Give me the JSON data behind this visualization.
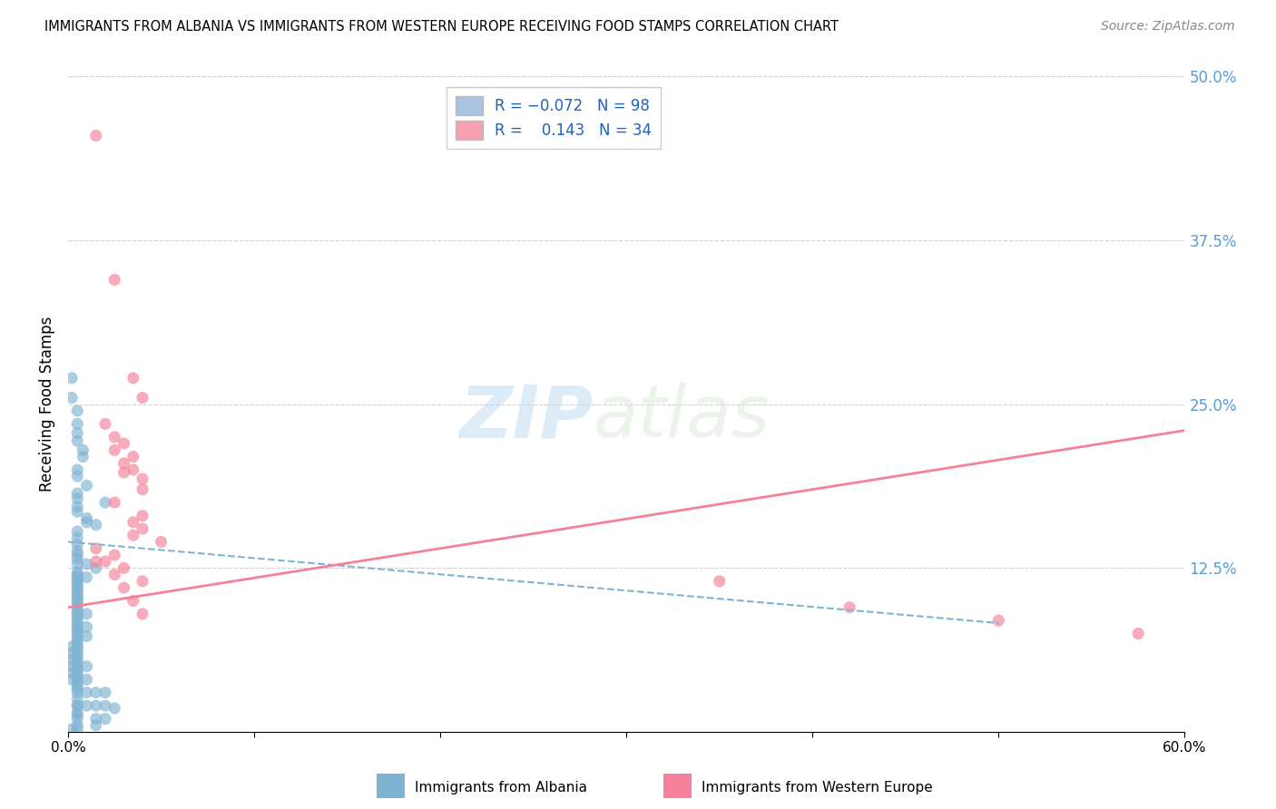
{
  "title": "IMMIGRANTS FROM ALBANIA VS IMMIGRANTS FROM WESTERN EUROPE RECEIVING FOOD STAMPS CORRELATION CHART",
  "source": "Source: ZipAtlas.com",
  "ylabel": "Receiving Food Stamps",
  "xlim": [
    0.0,
    0.6
  ],
  "ylim": [
    0.0,
    0.5
  ],
  "x_ticks": [
    0.0,
    0.1,
    0.2,
    0.3,
    0.4,
    0.5,
    0.6
  ],
  "x_tick_labels": [
    "0.0%",
    "",
    "",
    "",
    "",
    "",
    "60.0%"
  ],
  "y_ticks_right": [
    0.0,
    0.125,
    0.25,
    0.375,
    0.5
  ],
  "y_tick_labels_right": [
    "",
    "12.5%",
    "25.0%",
    "37.5%",
    "50.0%"
  ],
  "albania_color": "#7fb3d3",
  "western_europe_color": "#f48099",
  "albania_patch_color": "#a8c4e0",
  "western_europe_patch_color": "#f4a0b0",
  "watermark_zip": "ZIP",
  "watermark_atlas": "atlas",
  "background_color": "#ffffff",
  "grid_color": "#d0d0d0",
  "albania_scatter": [
    [
      0.002,
      0.27
    ],
    [
      0.002,
      0.255
    ],
    [
      0.005,
      0.245
    ],
    [
      0.005,
      0.235
    ],
    [
      0.005,
      0.228
    ],
    [
      0.005,
      0.222
    ],
    [
      0.008,
      0.215
    ],
    [
      0.008,
      0.21
    ],
    [
      0.005,
      0.2
    ],
    [
      0.005,
      0.195
    ],
    [
      0.01,
      0.188
    ],
    [
      0.005,
      0.182
    ],
    [
      0.005,
      0.178
    ],
    [
      0.005,
      0.172
    ],
    [
      0.005,
      0.168
    ],
    [
      0.01,
      0.163
    ],
    [
      0.015,
      0.158
    ],
    [
      0.005,
      0.153
    ],
    [
      0.005,
      0.148
    ],
    [
      0.005,
      0.143
    ],
    [
      0.005,
      0.138
    ],
    [
      0.005,
      0.135
    ],
    [
      0.005,
      0.132
    ],
    [
      0.005,
      0.128
    ],
    [
      0.01,
      0.128
    ],
    [
      0.015,
      0.125
    ],
    [
      0.005,
      0.122
    ],
    [
      0.005,
      0.12
    ],
    [
      0.005,
      0.118
    ],
    [
      0.01,
      0.118
    ],
    [
      0.005,
      0.115
    ],
    [
      0.005,
      0.115
    ],
    [
      0.005,
      0.112
    ],
    [
      0.005,
      0.11
    ],
    [
      0.005,
      0.108
    ],
    [
      0.005,
      0.106
    ],
    [
      0.005,
      0.104
    ],
    [
      0.005,
      0.102
    ],
    [
      0.005,
      0.1
    ],
    [
      0.005,
      0.098
    ],
    [
      0.005,
      0.095
    ],
    [
      0.005,
      0.092
    ],
    [
      0.005,
      0.09
    ],
    [
      0.005,
      0.088
    ],
    [
      0.01,
      0.09
    ],
    [
      0.005,
      0.085
    ],
    [
      0.005,
      0.083
    ],
    [
      0.005,
      0.08
    ],
    [
      0.005,
      0.078
    ],
    [
      0.005,
      0.076
    ],
    [
      0.01,
      0.08
    ],
    [
      0.005,
      0.073
    ],
    [
      0.005,
      0.07
    ],
    [
      0.005,
      0.068
    ],
    [
      0.01,
      0.073
    ],
    [
      0.005,
      0.065
    ],
    [
      0.005,
      0.063
    ],
    [
      0.005,
      0.06
    ],
    [
      0.005,
      0.058
    ],
    [
      0.005,
      0.055
    ],
    [
      0.005,
      0.053
    ],
    [
      0.005,
      0.05
    ],
    [
      0.005,
      0.048
    ],
    [
      0.01,
      0.05
    ],
    [
      0.005,
      0.045
    ],
    [
      0.005,
      0.043
    ],
    [
      0.005,
      0.04
    ],
    [
      0.005,
      0.038
    ],
    [
      0.01,
      0.04
    ],
    [
      0.005,
      0.035
    ],
    [
      0.005,
      0.033
    ],
    [
      0.005,
      0.03
    ],
    [
      0.01,
      0.03
    ],
    [
      0.015,
      0.03
    ],
    [
      0.02,
      0.03
    ],
    [
      0.005,
      0.025
    ],
    [
      0.005,
      0.02
    ],
    [
      0.005,
      0.02
    ],
    [
      0.01,
      0.02
    ],
    [
      0.015,
      0.02
    ],
    [
      0.02,
      0.02
    ],
    [
      0.025,
      0.018
    ],
    [
      0.005,
      0.015
    ],
    [
      0.005,
      0.013
    ],
    [
      0.005,
      0.01
    ],
    [
      0.015,
      0.01
    ],
    [
      0.02,
      0.01
    ],
    [
      0.005,
      0.005
    ],
    [
      0.015,
      0.005
    ],
    [
      0.002,
      0.002
    ],
    [
      0.005,
      0.002
    ],
    [
      0.02,
      0.175
    ],
    [
      0.01,
      0.16
    ],
    [
      0.002,
      0.065
    ],
    [
      0.002,
      0.06
    ],
    [
      0.002,
      0.055
    ],
    [
      0.002,
      0.05
    ],
    [
      0.002,
      0.045
    ],
    [
      0.002,
      0.04
    ]
  ],
  "western_europe_scatter": [
    [
      0.015,
      0.455
    ],
    [
      0.025,
      0.345
    ],
    [
      0.035,
      0.27
    ],
    [
      0.04,
      0.255
    ],
    [
      0.02,
      0.235
    ],
    [
      0.025,
      0.225
    ],
    [
      0.03,
      0.22
    ],
    [
      0.025,
      0.215
    ],
    [
      0.035,
      0.21
    ],
    [
      0.03,
      0.205
    ],
    [
      0.035,
      0.2
    ],
    [
      0.03,
      0.198
    ],
    [
      0.04,
      0.193
    ],
    [
      0.04,
      0.185
    ],
    [
      0.025,
      0.175
    ],
    [
      0.04,
      0.165
    ],
    [
      0.035,
      0.16
    ],
    [
      0.04,
      0.155
    ],
    [
      0.035,
      0.15
    ],
    [
      0.05,
      0.145
    ],
    [
      0.015,
      0.14
    ],
    [
      0.025,
      0.135
    ],
    [
      0.015,
      0.13
    ],
    [
      0.02,
      0.13
    ],
    [
      0.03,
      0.125
    ],
    [
      0.025,
      0.12
    ],
    [
      0.04,
      0.115
    ],
    [
      0.03,
      0.11
    ],
    [
      0.035,
      0.1
    ],
    [
      0.04,
      0.09
    ],
    [
      0.35,
      0.115
    ],
    [
      0.42,
      0.095
    ],
    [
      0.5,
      0.085
    ],
    [
      0.575,
      0.075
    ]
  ],
  "albania_line": [
    0.0,
    0.145,
    0.5,
    0.083
  ],
  "western_europe_line": [
    0.0,
    0.095,
    0.6,
    0.23
  ],
  "legend_labels": [
    "Immigrants from Albania",
    "Immigrants from Western Europe"
  ]
}
